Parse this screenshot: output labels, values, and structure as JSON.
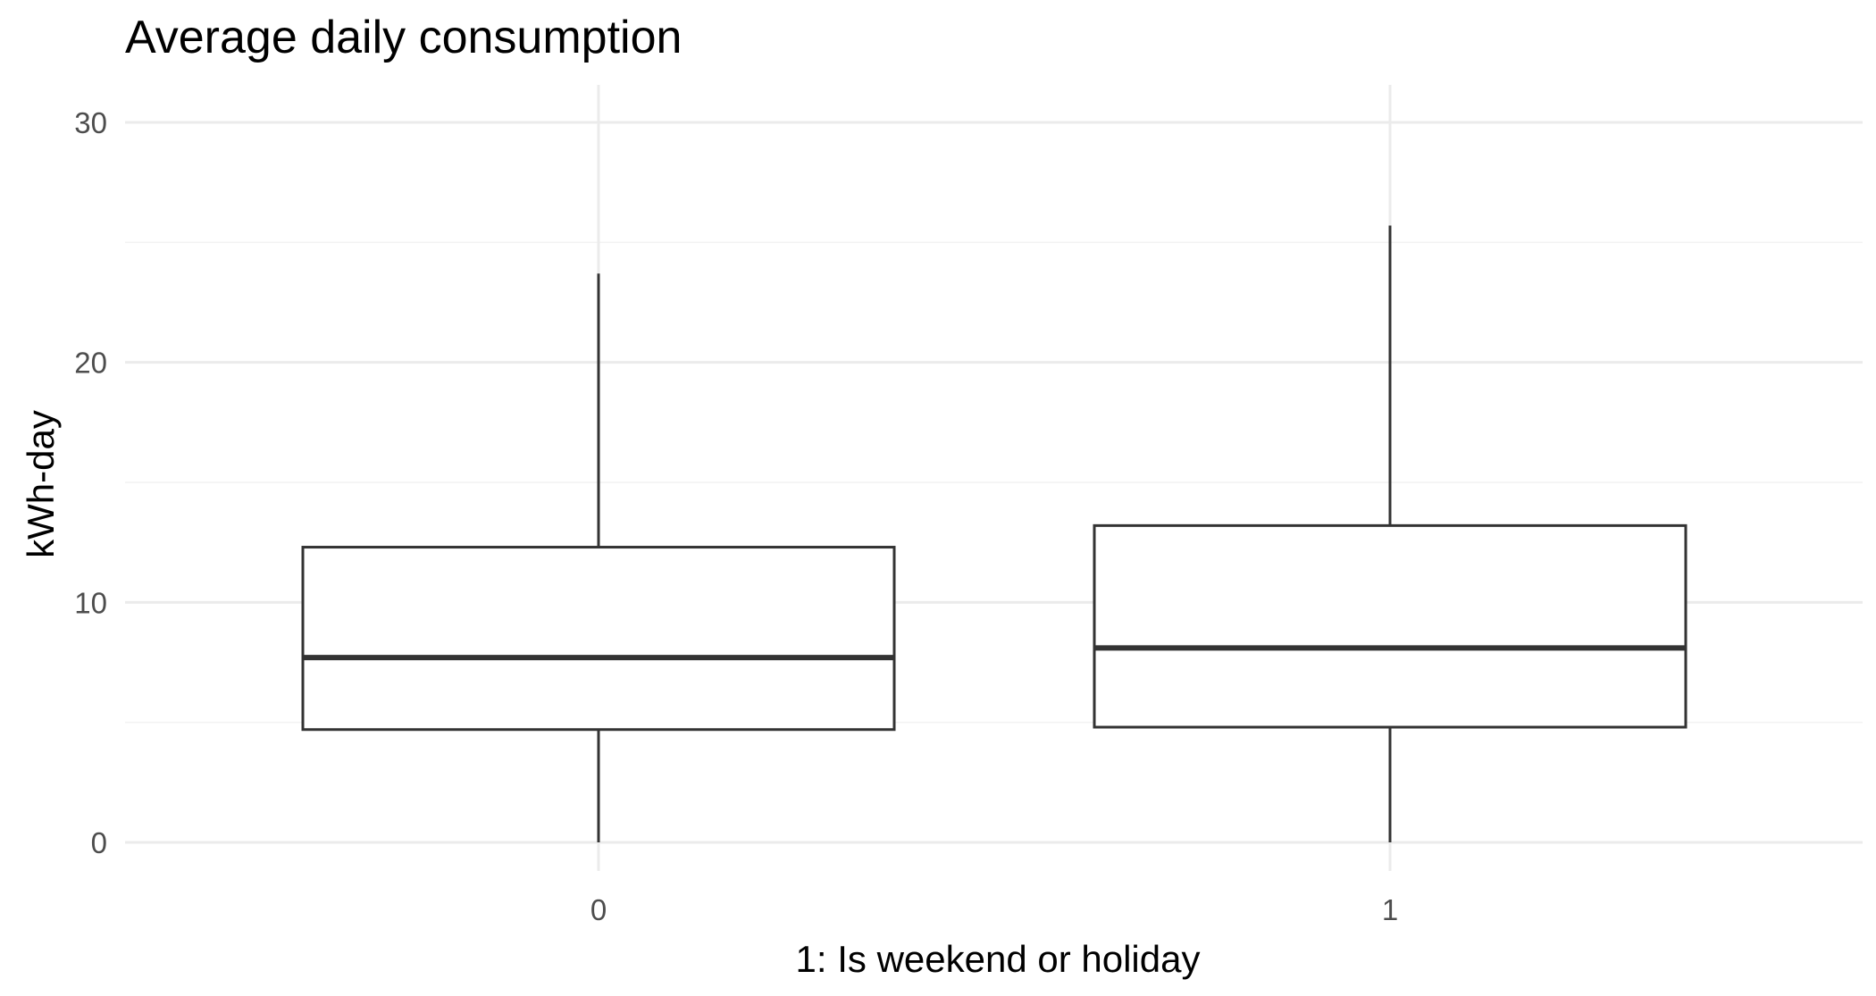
{
  "chart_data": {
    "type": "boxplot",
    "title": "Average daily consumption",
    "xlabel": "1: Is weekend or holiday",
    "ylabel": "kWh-day",
    "categories": [
      "0",
      "1"
    ],
    "boxes": [
      {
        "category": "0",
        "whisker_low": 0.0,
        "q1": 4.7,
        "median": 7.7,
        "q3": 12.3,
        "whisker_high": 23.7
      },
      {
        "category": "1",
        "whisker_low": 0.0,
        "q1": 4.8,
        "median": 8.1,
        "q3": 13.2,
        "whisker_high": 25.7
      }
    ],
    "y_ticks": [
      "0",
      "10",
      "20",
      "30"
    ],
    "y_tick_values": [
      0,
      10,
      20,
      30
    ],
    "y_minor_ticks": [
      5,
      15,
      25
    ],
    "ylim": [
      0,
      30
    ],
    "grid": true,
    "legend": "none"
  }
}
